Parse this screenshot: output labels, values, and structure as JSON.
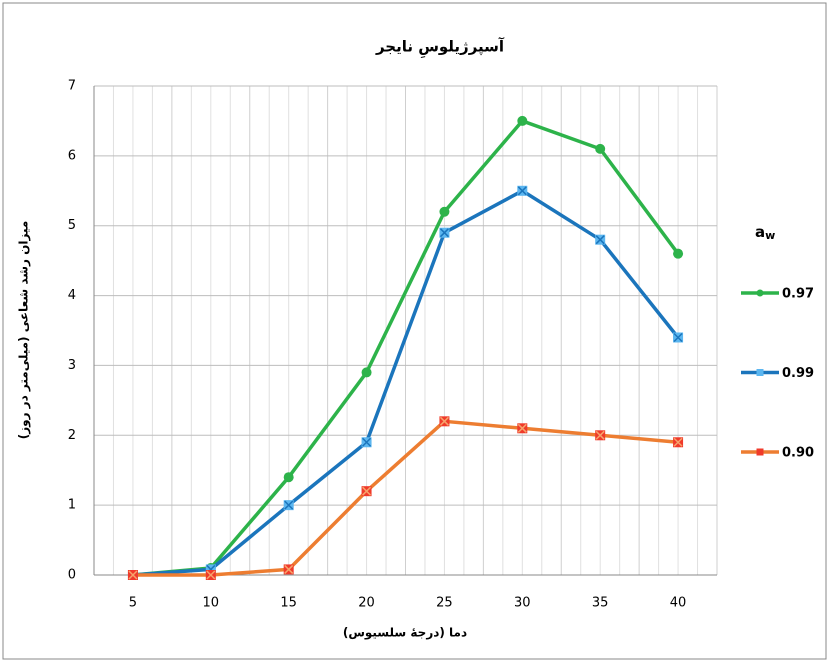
{
  "chart_data": {
    "type": "line",
    "title": "آسپرژیلوسِ نایجر",
    "x_label": "دما (درجهٔ سلسیوس)",
    "y_label": "میزان رشد شعاعی (میلی‌متر در روز)",
    "legend_title": "a",
    "legend_title_subscript": "w",
    "legend_position": "right",
    "grid": true,
    "categories": [
      "5",
      "10",
      "15",
      "20",
      "25",
      "30",
      "35",
      "40"
    ],
    "ylim": [
      0,
      7
    ],
    "yticks": [
      0,
      1,
      2,
      3,
      4,
      5,
      6,
      7
    ],
    "series": [
      {
        "name": "0.97",
        "color": "#2db34a",
        "marker": "circle",
        "values": [
          0,
          0.1,
          1.4,
          2.9,
          5.2,
          6.5,
          6.1,
          4.6
        ]
      },
      {
        "name": "0.99",
        "color": "#1b75bc",
        "marker": "square-x",
        "values": [
          0,
          0.08,
          1.0,
          1.9,
          4.9,
          5.5,
          4.8,
          3.4
        ]
      },
      {
        "name": "0.90",
        "color": "#ed7d31",
        "marker": "square-red",
        "values": [
          0,
          0,
          0.08,
          1.2,
          2.2,
          2.1,
          2.0,
          1.9
        ]
      }
    ]
  }
}
